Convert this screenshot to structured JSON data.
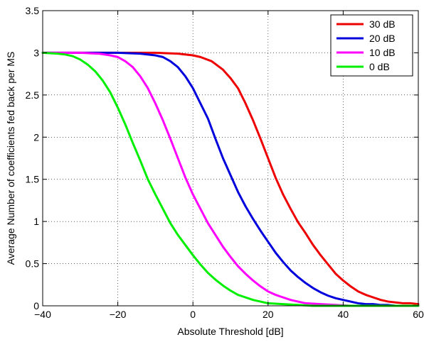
{
  "chart_data": {
    "type": "line",
    "title": "",
    "xlabel": "Absolute Threshold [dB]",
    "ylabel": "Average Number of coefficients fed back per MS",
    "xlim": [
      -40,
      60
    ],
    "ylim": [
      0,
      3.5
    ],
    "xticks": [
      -40,
      -20,
      0,
      20,
      40,
      60
    ],
    "xtick_labels": [
      "−40",
      "−20",
      "0",
      "20",
      "40",
      "60"
    ],
    "yticks": [
      0,
      0.5,
      1,
      1.5,
      2,
      2.5,
      3,
      3.5
    ],
    "ytick_labels": [
      "0",
      "0.5",
      "1",
      "1.5",
      "2",
      "2.5",
      "3",
      "3.5"
    ],
    "grid": true,
    "legend_position": "top-right",
    "series": [
      {
        "name": "30 dB",
        "color": "#ee0000",
        "x": [
          -40,
          -30,
          -20,
          -10,
          -4,
          0,
          2,
          5,
          8,
          10,
          12,
          14,
          16,
          18,
          20,
          22,
          24,
          26,
          28,
          30,
          32,
          34,
          36,
          38,
          40,
          42,
          44,
          46,
          48,
          50,
          52,
          54,
          56,
          58,
          60
        ],
        "y": [
          3.0,
          3.0,
          3.0,
          3.0,
          2.99,
          2.97,
          2.95,
          2.9,
          2.8,
          2.7,
          2.58,
          2.4,
          2.2,
          1.98,
          1.75,
          1.52,
          1.32,
          1.15,
          0.99,
          0.86,
          0.72,
          0.6,
          0.49,
          0.38,
          0.3,
          0.23,
          0.17,
          0.13,
          0.1,
          0.07,
          0.05,
          0.04,
          0.03,
          0.03,
          0.02
        ]
      },
      {
        "name": "20 dB",
        "color": "#0000dd",
        "x": [
          -40,
          -30,
          -20,
          -14,
          -10,
          -8,
          -6,
          -4,
          -2,
          0,
          2,
          4,
          6,
          8,
          10,
          12,
          14,
          16,
          18,
          20,
          22,
          24,
          26,
          28,
          30,
          32,
          34,
          36,
          38,
          40,
          42,
          44,
          46,
          48,
          50,
          52,
          54,
          56,
          60
        ],
        "y": [
          3.0,
          3.0,
          3.0,
          2.99,
          2.97,
          2.95,
          2.9,
          2.83,
          2.72,
          2.58,
          2.4,
          2.22,
          1.98,
          1.75,
          1.55,
          1.35,
          1.18,
          1.03,
          0.89,
          0.76,
          0.63,
          0.52,
          0.42,
          0.34,
          0.27,
          0.21,
          0.16,
          0.12,
          0.09,
          0.07,
          0.05,
          0.03,
          0.02,
          0.02,
          0.01,
          0.01,
          0.0,
          0.0,
          0.0
        ]
      },
      {
        "name": "10 dB",
        "color": "#ff00ff",
        "x": [
          -40,
          -30,
          -25,
          -22,
          -20,
          -18,
          -16,
          -14,
          -12,
          -10,
          -8,
          -6,
          -4,
          -2,
          0,
          2,
          4,
          6,
          8,
          10,
          12,
          14,
          16,
          18,
          20,
          22,
          24,
          26,
          28,
          30,
          34,
          38,
          42,
          46,
          50,
          60
        ],
        "y": [
          3.0,
          3.0,
          2.99,
          2.97,
          2.95,
          2.9,
          2.83,
          2.72,
          2.58,
          2.4,
          2.2,
          1.98,
          1.75,
          1.52,
          1.32,
          1.15,
          0.98,
          0.84,
          0.7,
          0.58,
          0.47,
          0.38,
          0.3,
          0.23,
          0.17,
          0.13,
          0.1,
          0.07,
          0.05,
          0.03,
          0.02,
          0.01,
          0.0,
          0.0,
          0.0,
          0.0
        ]
      },
      {
        "name": "0 dB",
        "color": "#00ee00",
        "x": [
          -40,
          -36,
          -34,
          -32,
          -30,
          -28,
          -26,
          -24,
          -22,
          -20,
          -18,
          -16,
          -14,
          -12,
          -10,
          -8,
          -6,
          -4,
          -2,
          0,
          2,
          4,
          6,
          8,
          10,
          12,
          14,
          16,
          18,
          20,
          24,
          28,
          32,
          36,
          40,
          50,
          60
        ],
        "y": [
          3.0,
          2.99,
          2.98,
          2.96,
          2.92,
          2.86,
          2.78,
          2.67,
          2.53,
          2.35,
          2.15,
          1.93,
          1.72,
          1.5,
          1.32,
          1.15,
          0.98,
          0.84,
          0.72,
          0.6,
          0.49,
          0.39,
          0.31,
          0.24,
          0.18,
          0.13,
          0.1,
          0.07,
          0.05,
          0.03,
          0.02,
          0.01,
          0.0,
          0.0,
          0.0,
          0.0,
          0.0
        ]
      }
    ]
  }
}
